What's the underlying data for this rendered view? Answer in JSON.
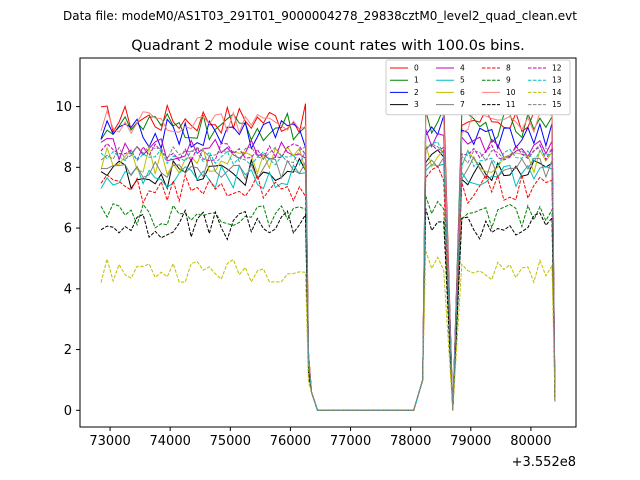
{
  "figure": {
    "suptitle": "Data file: modeM0/AS1T03_291T01_9000004278_29838cztM0_level2_quad_clean.evt"
  },
  "chart_data": {
    "type": "line",
    "title": "Quadrant 2 module wise count rates with 100.0s bins.",
    "xlabel": "",
    "ylabel": "",
    "x_offset_label": "+3.552e8",
    "xlim": [
      72500,
      80750
    ],
    "ylim": [
      -0.55,
      11.6
    ],
    "xticks": [
      73000,
      74000,
      75000,
      76000,
      77000,
      78000,
      79000,
      80000
    ],
    "yticks": [
      0,
      2,
      4,
      6,
      8,
      10
    ],
    "legend_position": "top-right",
    "legend_columns": 4,
    "gaps": [
      [
        76450,
        78100
      ],
      [
        78550,
        78800
      ]
    ],
    "segments": [
      {
        "start": 72850,
        "end": 76250,
        "step": 100
      },
      {
        "start": 78250,
        "end": 78550,
        "step": 100
      },
      {
        "start": 78850,
        "end": 80350,
        "step": 100
      }
    ],
    "series": [
      {
        "name": "0",
        "color": "#ff0000",
        "dash": "solid",
        "level": 9.6,
        "noise": 0.25
      },
      {
        "name": "1",
        "color": "#008000",
        "dash": "solid",
        "level": 9.3,
        "noise": 0.25
      },
      {
        "name": "2",
        "color": "#0000ff",
        "dash": "solid",
        "level": 9.1,
        "noise": 0.25
      },
      {
        "name": "3",
        "color": "#000000",
        "dash": "solid",
        "level": 7.8,
        "noise": 0.25
      },
      {
        "name": "4",
        "color": "#bf00bf",
        "dash": "solid",
        "level": 8.6,
        "noise": 0.2
      },
      {
        "name": "5",
        "color": "#00bfbf",
        "dash": "solid",
        "level": 7.7,
        "noise": 0.2
      },
      {
        "name": "6",
        "color": "#bfbf00",
        "dash": "solid",
        "level": 8.2,
        "noise": 0.25
      },
      {
        "name": "7",
        "color": "#808080",
        "dash": "solid",
        "level": 8.0,
        "noise": 0.2
      },
      {
        "name": "8",
        "color": "#ff0000",
        "dash": "dashed",
        "level": 7.3,
        "noise": 0.25
      },
      {
        "name": "9",
        "color": "#008000",
        "dash": "dashed",
        "level": 6.4,
        "noise": 0.2
      },
      {
        "name": "10",
        "color": "#ff8080",
        "dash": "solid",
        "level": 9.5,
        "noise": 0.2
      },
      {
        "name": "11",
        "color": "#000000",
        "dash": "dashed",
        "level": 6.1,
        "noise": 0.25
      },
      {
        "name": "12",
        "color": "#bf00bf",
        "dash": "dashed",
        "level": 8.5,
        "noise": 0.15
      },
      {
        "name": "13",
        "color": "#00bfbf",
        "dash": "dashed",
        "level": 8.3,
        "noise": 0.15
      },
      {
        "name": "14",
        "color": "#bfbf00",
        "dash": "dashed",
        "level": 4.6,
        "noise": 0.2
      },
      {
        "name": "15",
        "color": "#808080",
        "dash": "dashed",
        "level": 8.4,
        "noise": 0.15
      }
    ]
  }
}
